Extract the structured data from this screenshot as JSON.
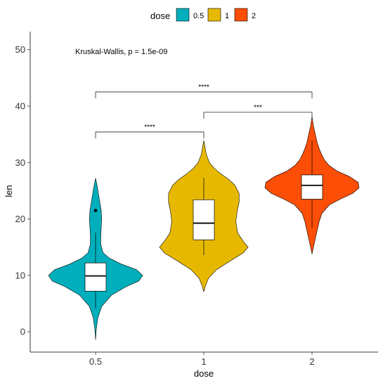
{
  "chart_data": {
    "type": "violin",
    "xlabel": "dose",
    "ylabel": "len",
    "ylim": [
      -3.6,
      53.2
    ],
    "yticks": [
      0,
      10,
      20,
      30,
      40,
      50
    ],
    "categories": [
      "0.5",
      "1",
      "2"
    ],
    "legend": {
      "title": "dose",
      "position": "top",
      "entries": [
        {
          "label": "0.5",
          "color": "#00AFBB"
        },
        {
          "label": "1",
          "color": "#E7B800"
        },
        {
          "label": "2",
          "color": "#FC4E07"
        }
      ]
    },
    "groups": [
      {
        "name": "0.5",
        "color": "#00AFBB",
        "violin_range": [
          -1.4,
          27.2
        ],
        "density": [
          [
            -1.4,
            0.0
          ],
          [
            0.5,
            0.015
          ],
          [
            2.5,
            0.05
          ],
          [
            4.5,
            0.13
          ],
          [
            6.5,
            0.34
          ],
          [
            8.0,
            0.65
          ],
          [
            9.0,
            0.92
          ],
          [
            10.0,
            1.0
          ],
          [
            11.0,
            0.87
          ],
          [
            12.0,
            0.55
          ],
          [
            13.0,
            0.3
          ],
          [
            14.0,
            0.16
          ],
          [
            15.5,
            0.11
          ],
          [
            17.0,
            0.11
          ],
          [
            18.5,
            0.12
          ],
          [
            20.0,
            0.13
          ],
          [
            21.5,
            0.12
          ],
          [
            23.0,
            0.09
          ],
          [
            24.5,
            0.06
          ],
          [
            26.0,
            0.03
          ],
          [
            27.2,
            0.0
          ]
        ],
        "box": {
          "q1": 7.2,
          "median": 9.9,
          "q3": 12.2,
          "whisker_low": 4.2,
          "whisker_high": 17.6
        },
        "outliers": [
          21.5
        ]
      },
      {
        "name": "1",
        "color": "#E7B800",
        "violin_range": [
          7.1,
          33.9
        ],
        "density": [
          [
            7.1,
            0.0
          ],
          [
            8.0,
            0.03
          ],
          [
            9.5,
            0.1
          ],
          [
            11.0,
            0.27
          ],
          [
            12.5,
            0.55
          ],
          [
            14.0,
            0.84
          ],
          [
            15.0,
            0.94
          ],
          [
            16.0,
            0.84
          ],
          [
            17.5,
            0.72
          ],
          [
            19.5,
            0.68
          ],
          [
            21.5,
            0.71
          ],
          [
            23.0,
            0.75
          ],
          [
            24.5,
            0.75
          ],
          [
            26.0,
            0.66
          ],
          [
            27.0,
            0.53
          ],
          [
            28.0,
            0.36
          ],
          [
            29.0,
            0.22
          ],
          [
            30.0,
            0.12
          ],
          [
            31.5,
            0.05
          ],
          [
            33.0,
            0.02
          ],
          [
            33.9,
            0.0
          ]
        ],
        "box": {
          "q1": 16.3,
          "median": 19.25,
          "q3": 23.4,
          "whisker_low": 13.6,
          "whisker_high": 27.3
        },
        "outliers": []
      },
      {
        "name": "2",
        "color": "#FC4E07",
        "violin_range": [
          13.8,
          38.1
        ],
        "density": [
          [
            13.8,
            0.0
          ],
          [
            15.0,
            0.03
          ],
          [
            16.5,
            0.07
          ],
          [
            18.0,
            0.11
          ],
          [
            19.5,
            0.15
          ],
          [
            21.0,
            0.21
          ],
          [
            22.5,
            0.37
          ],
          [
            23.5,
            0.6
          ],
          [
            24.5,
            0.86
          ],
          [
            25.5,
            1.0
          ],
          [
            26.5,
            0.98
          ],
          [
            27.5,
            0.8
          ],
          [
            28.5,
            0.53
          ],
          [
            29.5,
            0.36
          ],
          [
            30.5,
            0.26
          ],
          [
            31.5,
            0.2
          ],
          [
            32.5,
            0.15
          ],
          [
            33.5,
            0.11
          ],
          [
            35.0,
            0.07
          ],
          [
            36.5,
            0.03
          ],
          [
            38.1,
            0.0
          ]
        ],
        "box": {
          "q1": 23.5,
          "median": 25.95,
          "q3": 27.8,
          "whisker_low": 18.5,
          "whisker_high": 33.9
        },
        "outliers": []
      }
    ],
    "global_test": "Kruskal-Wallis, p = 1.5e-09",
    "comparisons": [
      {
        "group1": "0.5",
        "group2": "1",
        "y": 35.4,
        "label": "****"
      },
      {
        "group1": "1",
        "group2": "2",
        "y": 38.9,
        "label": "***"
      },
      {
        "group1": "0.5",
        "group2": "2",
        "y": 42.5,
        "label": "****"
      }
    ],
    "grid": false
  }
}
